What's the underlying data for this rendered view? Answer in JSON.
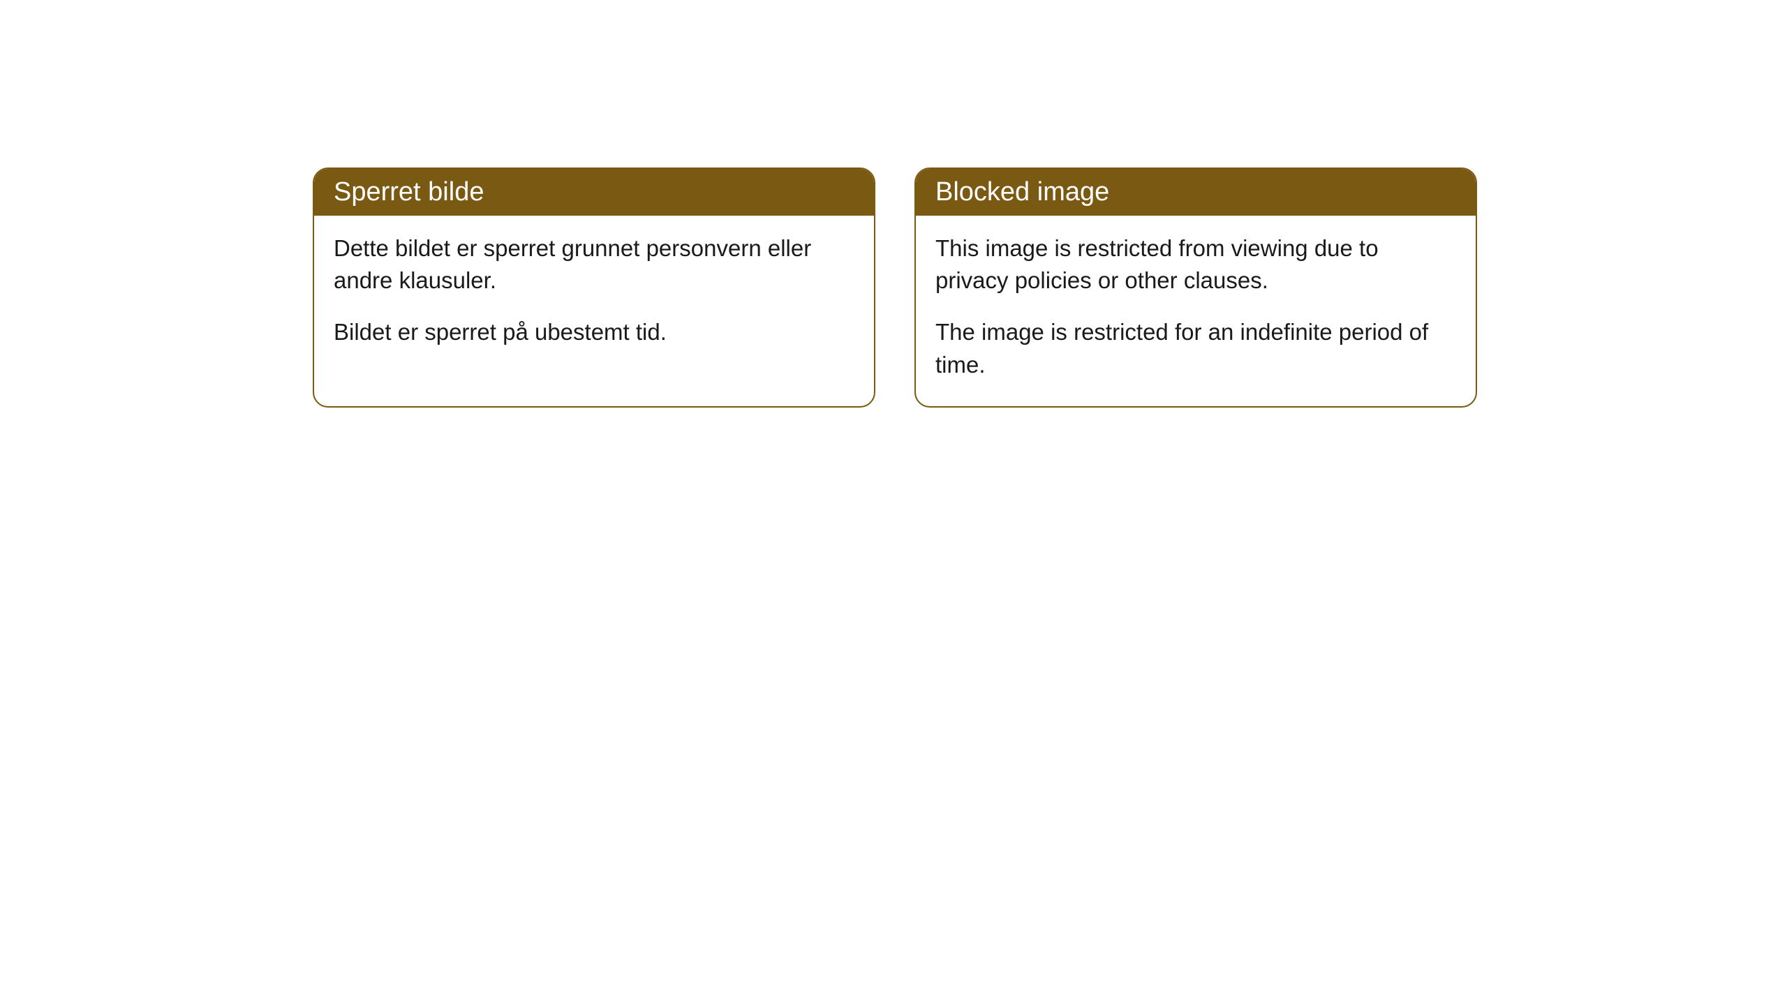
{
  "cards": [
    {
      "title": "Sperret bilde",
      "paragraph1": "Dette bildet er sperret grunnet personvern eller andre klausuler.",
      "paragraph2": "Bildet er sperret på ubestemt tid."
    },
    {
      "title": "Blocked image",
      "paragraph1": "This image is restricted from viewing due to privacy policies or other clauses.",
      "paragraph2": "The image is restricted for an indefinite period of time."
    }
  ],
  "style": {
    "header_bg": "#7a5a12",
    "header_text_color": "#ffffff",
    "border_color": "#7a5a12",
    "body_bg": "#ffffff",
    "body_text_color": "#1a1a1a",
    "border_radius": 22,
    "title_fontsize": 38,
    "body_fontsize": 33
  }
}
